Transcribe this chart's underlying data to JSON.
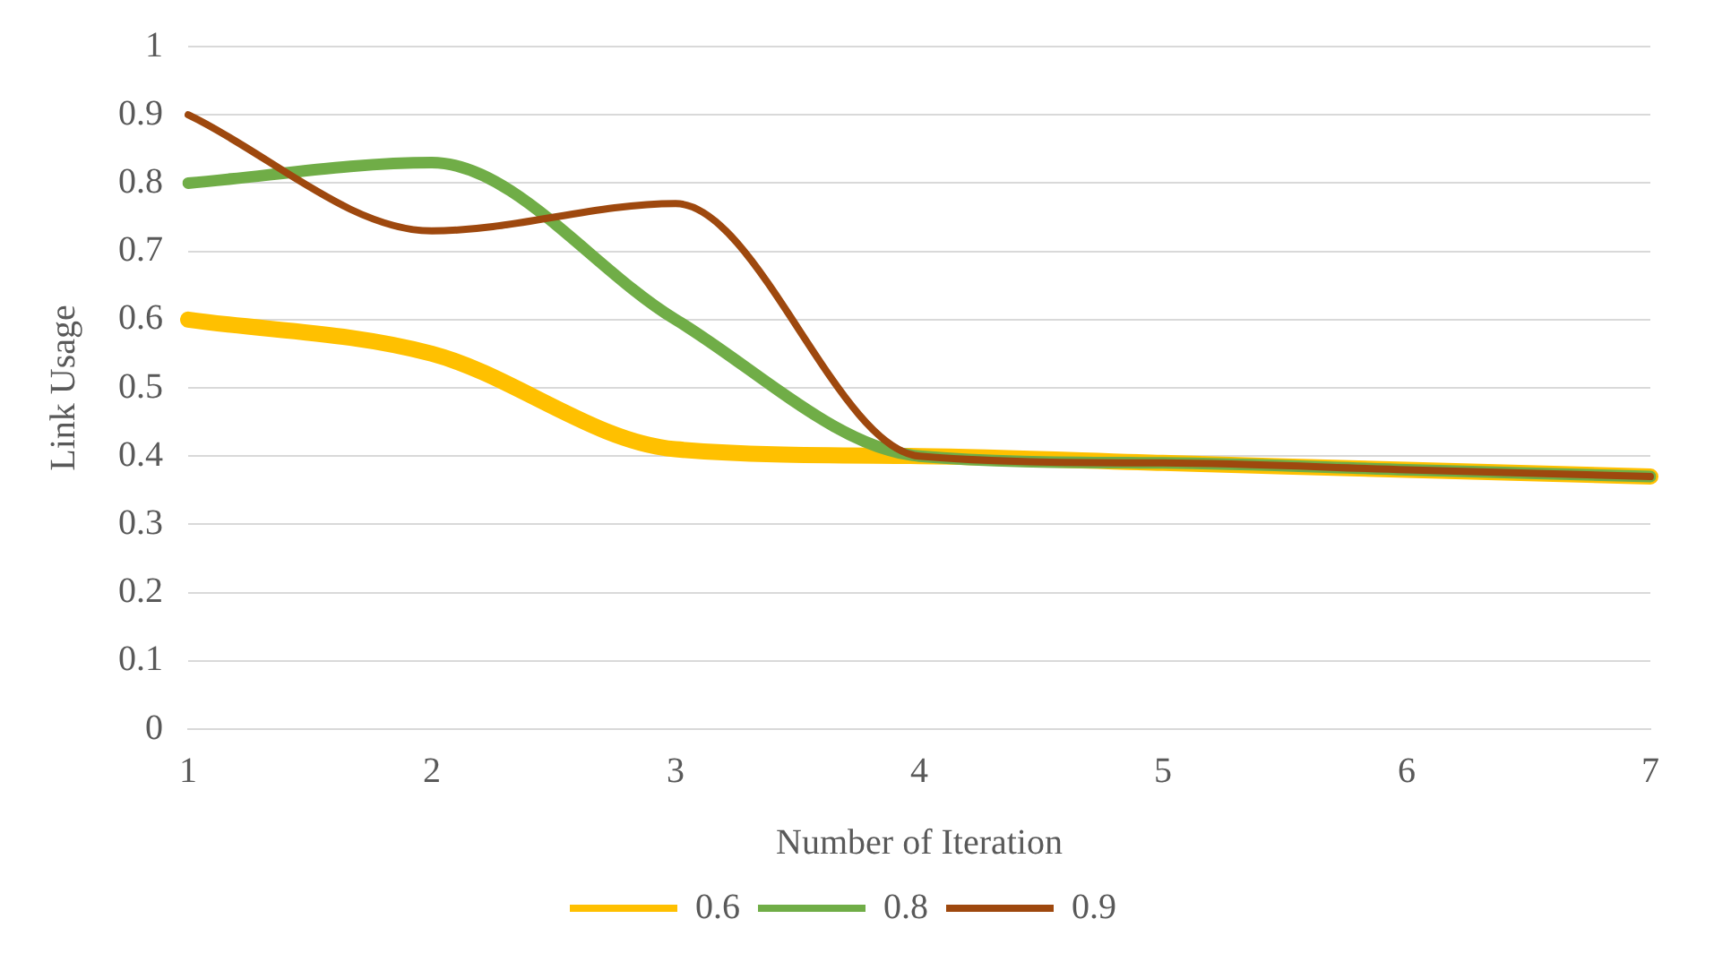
{
  "chart_data": {
    "type": "line",
    "xlabel": "Number of Iteration",
    "ylabel": "Link Usage",
    "categories": [
      "1",
      "2",
      "3",
      "4",
      "5",
      "6",
      "7"
    ],
    "series": [
      {
        "name": "0.6",
        "color": "#ffc000",
        "values": [
          0.6,
          0.55,
          0.41,
          0.4,
          0.39,
          0.38,
          0.37
        ]
      },
      {
        "name": "0.8",
        "color": "#70ad47",
        "values": [
          0.8,
          0.83,
          0.6,
          0.4,
          0.39,
          0.38,
          0.37
        ]
      },
      {
        "name": "0.9",
        "color": "#9e480e",
        "values": [
          0.9,
          0.73,
          0.77,
          0.4,
          0.39,
          0.38,
          0.37
        ]
      }
    ],
    "ylim": [
      0,
      1
    ],
    "yticks": [
      0,
      0.1,
      0.2,
      0.3,
      0.4,
      0.5,
      0.6,
      0.7,
      0.8,
      0.9,
      1
    ],
    "grid": "y",
    "legend": "bottom",
    "marker": "none",
    "line_style": "solid"
  }
}
